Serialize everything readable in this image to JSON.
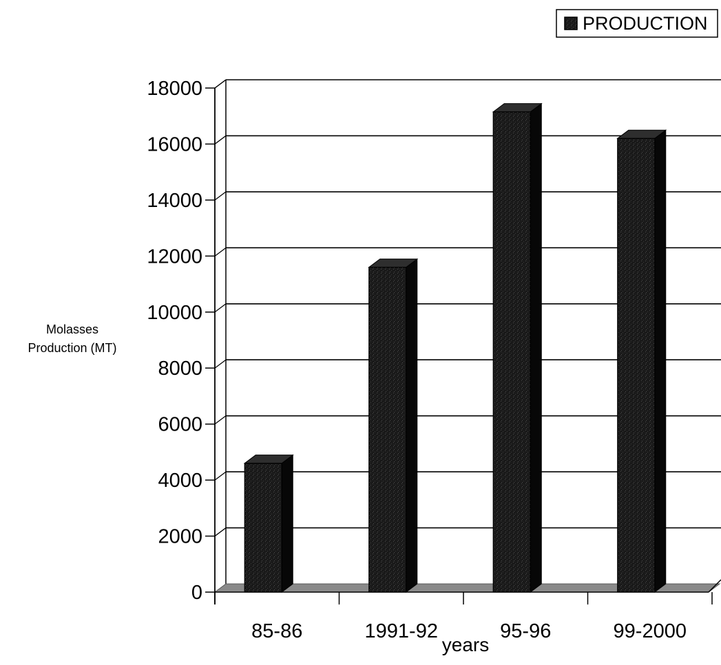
{
  "chart_data": {
    "type": "bar",
    "title": "",
    "xlabel": "years",
    "ylabel_lines": [
      "Molasses",
      "Production (MT)"
    ],
    "categories": [
      "85-86",
      "1991-92",
      "95-96",
      "99-2000"
    ],
    "series": [
      {
        "name": "PRODUCTION",
        "values": [
          4600,
          11600,
          17150,
          16200
        ]
      }
    ],
    "ylim": [
      0,
      18000
    ],
    "yticks": [
      0,
      2000,
      4000,
      6000,
      8000,
      10000,
      12000,
      14000,
      16000,
      18000
    ],
    "grid": true,
    "legend_position": "top-right",
    "three_d": true,
    "colors": {
      "bar_front": "#1b1b1b",
      "bar_side": "#070707",
      "bar_top": "#2e2e2e",
      "floor": "#8a8a8a",
      "grid": "#000000"
    }
  }
}
